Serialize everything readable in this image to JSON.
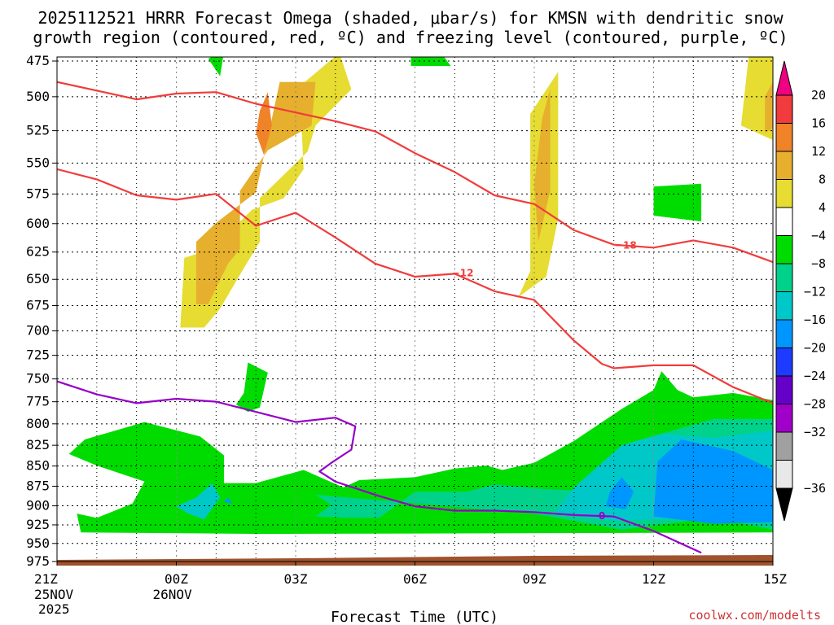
{
  "chart_data": {
    "type": "contour",
    "title": {
      "line1": "2025112521 HRRR Forecast Omega (shaded, μbar/s) for KMSN with dendritic snow",
      "line2": "growth region (contoured, red, ºC) and freezing level (contoured, purple, ºC)"
    },
    "xlabel": "Forecast Time (UTC)",
    "credit": "coolwx.com/modelts",
    "x_ticks": [
      {
        "hour": 0,
        "label": "21Z",
        "sub1": "25NOV",
        "sub2": "2025"
      },
      {
        "hour": 3,
        "label": "00Z",
        "sub1": "26NOV",
        "sub2": ""
      },
      {
        "hour": 6,
        "label": "03Z",
        "sub1": "",
        "sub2": ""
      },
      {
        "hour": 9,
        "label": "06Z",
        "sub1": "",
        "sub2": ""
      },
      {
        "hour": 12,
        "label": "09Z",
        "sub1": "",
        "sub2": ""
      },
      {
        "hour": 15,
        "label": "12Z",
        "sub1": "",
        "sub2": ""
      },
      {
        "hour": 18,
        "label": "15Z",
        "sub1": "",
        "sub2": ""
      }
    ],
    "xlim": [
      0,
      18
    ],
    "y_ticks": [
      475,
      500,
      525,
      550,
      575,
      600,
      625,
      650,
      675,
      700,
      725,
      750,
      775,
      800,
      825,
      850,
      875,
      900,
      925,
      950,
      975
    ],
    "ylim": [
      475,
      980
    ],
    "y_scale": "log-pressure",
    "colorbar": {
      "labels": [
        "20",
        "16",
        "12",
        "8",
        "4",
        "−4",
        "−8",
        "−12",
        "−16",
        "−20",
        "−24",
        "−28",
        "−32",
        "−36"
      ],
      "colors": [
        "#e8e8e8",
        "#a0a0a0",
        "#a000c8",
        "#6400c8",
        "#1e3cff",
        "#0096ff",
        "#00c8c8",
        "#00d28c",
        "#00dc00",
        "#ffffff",
        "#e6dc32",
        "#e6af2d",
        "#f08228",
        "#f03c3c",
        "#f00082"
      ]
    },
    "omega_shading": [
      {
        "level": "green",
        "color": "#00dc00",
        "polys": [
          [
            [
              1.0,
              6.6
            ],
            [
              0.3,
              7.4
            ],
            [
              0.7,
              8.4
            ],
            [
              2.2,
              9.6
            ],
            [
              3.6,
              8.6
            ],
            [
              4.2,
              7.3
            ],
            [
              4.2,
              5.4
            ],
            [
              5.0,
              5.4
            ],
            [
              6.2,
              6.3
            ],
            [
              7.2,
              5.1
            ],
            [
              7.6,
              5.6
            ],
            [
              9.0,
              5.8
            ],
            [
              10.0,
              6.4
            ],
            [
              10.8,
              6.6
            ],
            [
              11.2,
              6.3
            ],
            [
              12.0,
              6.8
            ],
            [
              13.0,
              8.3
            ],
            [
              14.2,
              10.5
            ],
            [
              15.0,
              11.8
            ],
            [
              15.2,
              13.1
            ],
            [
              15.6,
              11.8
            ],
            [
              16.0,
              11.3
            ],
            [
              17.0,
              11.6
            ],
            [
              18.0,
              11.1
            ],
            [
              18.0,
              2.0
            ],
            [
              5.2,
              1.9
            ],
            [
              0.6,
              2.0
            ],
            [
              0.5,
              3.3
            ],
            [
              1.0,
              3.0
            ],
            [
              1.9,
              4.0
            ],
            [
              2.2,
              5.5
            ]
          ]
        ]
      },
      {
        "level": "green",
        "color": "#00dc00",
        "polys": [
          [
            [
              4.8,
              10.3
            ],
            [
              4.5,
              10.8
            ],
            [
              4.7,
              11.6
            ],
            [
              4.8,
              13.7
            ],
            [
              5.3,
              13.0
            ],
            [
              5.1,
              10.6
            ]
          ],
          [
            [
              15.0,
              23.8
            ],
            [
              15.0,
              25.8
            ],
            [
              16.2,
              26.0
            ],
            [
              16.2,
              23.4
            ]
          ],
          [
            [
              3.8,
              34.6
            ],
            [
              4.2,
              35.1
            ],
            [
              4.1,
              33.4
            ]
          ],
          [
            [
              8.9,
              34.7
            ],
            [
              9.5,
              35.6
            ],
            [
              9.9,
              34.1
            ],
            [
              8.9,
              34.1
            ]
          ]
        ]
      },
      {
        "level": "teal",
        "color": "#00d28c",
        "polys": [
          [
            [
              6.5,
              4.6
            ],
            [
              6.9,
              3.9
            ],
            [
              6.5,
              3.1
            ],
            [
              7.3,
              3.0
            ],
            [
              8.1,
              3.0
            ],
            [
              9.0,
              4.8
            ],
            [
              10.3,
              4.8
            ],
            [
              11.0,
              5.3
            ],
            [
              12.2,
              5.0
            ],
            [
              13.8,
              4.8
            ],
            [
              14.8,
              6.8
            ],
            [
              15.2,
              8.8
            ],
            [
              16.5,
              9.8
            ],
            [
              18.0,
              9.8
            ],
            [
              18.0,
              2.2
            ],
            [
              16.5,
              3.0
            ],
            [
              14.2,
              2.2
            ],
            [
              12.0,
              3.3
            ]
          ]
        ]
      },
      {
        "level": "teal2",
        "color": "#00c8c8",
        "polys": [
          [
            [
              3.0,
              3.8
            ],
            [
              3.5,
              4.4
            ],
            [
              3.9,
              5.4
            ],
            [
              4.1,
              4.4
            ],
            [
              3.7,
              2.9
            ],
            [
              3.3,
              3.3
            ]
          ],
          [
            [
              12.5,
              3.3
            ],
            [
              13.0,
              5.1
            ],
            [
              14.2,
              8.0
            ],
            [
              15.2,
              8.8
            ],
            [
              16.5,
              8.5
            ],
            [
              18.0,
              9.0
            ],
            [
              18.0,
              2.6
            ],
            [
              16.2,
              3.0
            ],
            [
              14.0,
              2.8
            ]
          ]
        ]
      },
      {
        "level": "blue",
        "color": "#0096ff",
        "polys": [
          [
            [
              15.0,
              3.1
            ],
            [
              15.1,
              6.9
            ],
            [
              15.7,
              8.4
            ],
            [
              17.0,
              7.6
            ],
            [
              18.0,
              6.3
            ],
            [
              18.0,
              2.7
            ],
            [
              16.5,
              2.6
            ]
          ],
          [
            [
              13.8,
              3.8
            ],
            [
              13.9,
              4.8
            ],
            [
              14.2,
              5.8
            ],
            [
              14.5,
              4.8
            ],
            [
              14.3,
              3.6
            ]
          ],
          [
            [
              4.3,
              4.4
            ],
            [
              4.4,
              4.0
            ],
            [
              4.2,
              4.1
            ]
          ]
        ]
      },
      {
        "level": "yellow",
        "color": "#e6dc32",
        "polys": [
          [
            [
              3.1,
              16.1
            ],
            [
              3.2,
              20.9
            ],
            [
              3.9,
              21.5
            ],
            [
              4.9,
              24.2
            ],
            [
              5.7,
              25.0
            ],
            [
              6.2,
              27.0
            ],
            [
              6.1,
              32.7
            ],
            [
              7.1,
              35.0
            ],
            [
              7.4,
              32.5
            ],
            [
              6.5,
              30.0
            ],
            [
              6.3,
              28.2
            ],
            [
              5.1,
              25.0
            ],
            [
              5.1,
              22.0
            ],
            [
              4.7,
              20.2
            ],
            [
              4.1,
              17.4
            ],
            [
              3.7,
              16.1
            ]
          ],
          [
            [
              11.6,
              18.2
            ],
            [
              11.9,
              20.0
            ],
            [
              11.9,
              30.8
            ],
            [
              12.6,
              33.7
            ],
            [
              12.6,
              23.6
            ],
            [
              12.3,
              19.6
            ]
          ],
          [
            [
              17.2,
              30.0
            ],
            [
              17.4,
              35.0
            ],
            [
              18.0,
              35.0
            ],
            [
              18.0,
              29.0
            ]
          ]
        ]
      },
      {
        "level": "orange",
        "color": "#e6af2d",
        "polys": [
          [
            [
              3.5,
              17.7
            ],
            [
              3.5,
              22.0
            ],
            [
              4.0,
              23.3
            ],
            [
              5.0,
              25.4
            ],
            [
              5.2,
              27.9
            ],
            [
              5.6,
              33.0
            ],
            [
              6.5,
              33.0
            ],
            [
              6.4,
              30.0
            ],
            [
              5.3,
              28.3
            ],
            [
              4.6,
              25.5
            ],
            [
              4.6,
              21.5
            ],
            [
              4.3,
              20.5
            ],
            [
              3.8,
              17.7
            ]
          ],
          [
            [
              12.0,
              26.0
            ],
            [
              12.2,
              30.5
            ],
            [
              12.4,
              32.5
            ],
            [
              12.4,
              25.5
            ],
            [
              12.1,
              22.0
            ]
          ],
          [
            [
              17.8,
              29.5
            ],
            [
              17.8,
              32.0
            ],
            [
              18.0,
              33.0
            ],
            [
              18.0,
              29.8
            ]
          ]
        ]
      },
      {
        "level": "orangedark",
        "color": "#f08228",
        "polys": [
          [
            [
              5.0,
              29.5
            ],
            [
              5.1,
              31.0
            ],
            [
              5.3,
              32.3
            ],
            [
              5.4,
              30.0
            ],
            [
              5.2,
              28.0
            ]
          ]
        ]
      }
    ],
    "dgz_contours": [
      {
        "label": "-18",
        "color": "#f03c3c",
        "points": [
          [
            0,
            33
          ],
          [
            2,
            31.8
          ],
          [
            3,
            32.2
          ],
          [
            4,
            32.3
          ],
          [
            5,
            31.5
          ],
          [
            7,
            30.3
          ],
          [
            8,
            29.6
          ],
          [
            9,
            28.1
          ],
          [
            10,
            26.8
          ],
          [
            11,
            25.2
          ],
          [
            12,
            24.6
          ],
          [
            13,
            22.8
          ],
          [
            14,
            21.8
          ],
          [
            15,
            21.6
          ],
          [
            16,
            22.1
          ],
          [
            17,
            21.6
          ],
          [
            18,
            20.6
          ]
        ],
        "label_at": [
          14.3,
          21.8
        ]
      },
      {
        "label": "-12",
        "color": "#f03c3c",
        "points": [
          [
            0,
            27.0
          ],
          [
            1,
            26.3
          ],
          [
            2,
            25.2
          ],
          [
            3,
            24.9
          ],
          [
            4,
            25.3
          ],
          [
            5,
            23.1
          ],
          [
            6,
            24.0
          ],
          [
            7,
            22.3
          ],
          [
            8,
            20.5
          ],
          [
            9,
            19.6
          ],
          [
            10,
            19.8
          ],
          [
            11,
            18.6
          ],
          [
            12,
            18.0
          ],
          [
            13,
            15.2
          ],
          [
            13.7,
            13.6
          ],
          [
            14,
            13.3
          ],
          [
            15,
            13.5
          ],
          [
            16,
            13.5
          ],
          [
            17,
            12.0
          ],
          [
            18,
            10.9
          ]
        ],
        "label_at": [
          10.2,
          19.9
        ]
      }
    ],
    "freezing_contour": {
      "label": "0",
      "color": "#9600c8",
      "points": [
        [
          0,
          12.4
        ],
        [
          1,
          11.5
        ],
        [
          2,
          10.9
        ],
        [
          3,
          11.2
        ],
        [
          4,
          11.0
        ],
        [
          5,
          10.3
        ],
        [
          6,
          9.6
        ],
        [
          7,
          9.9
        ],
        [
          7.5,
          9.3
        ],
        [
          7.4,
          7.7
        ],
        [
          6.9,
          6.8
        ],
        [
          6.6,
          6.2
        ],
        [
          7.0,
          5.5
        ],
        [
          8.1,
          4.5
        ],
        [
          9.0,
          3.8
        ],
        [
          10.0,
          3.5
        ],
        [
          11.0,
          3.5
        ],
        [
          12.0,
          3.4
        ],
        [
          13.0,
          3.2
        ],
        [
          14.0,
          3.1
        ],
        [
          15.0,
          2.1
        ],
        [
          16.2,
          0.6
        ]
      ],
      "label_at": [
        13.7,
        3.2
      ]
    },
    "ground": {
      "color": "#a0522d"
    }
  }
}
